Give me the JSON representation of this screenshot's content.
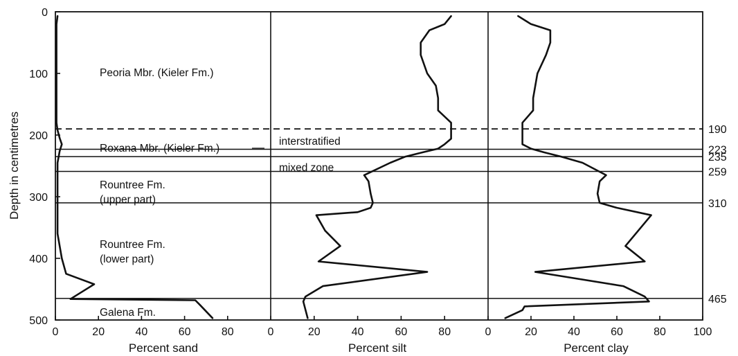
{
  "chart_data": {
    "type": "line",
    "ylabel": "Depth in centimetres",
    "ylim": [
      0,
      500
    ],
    "yticks": [
      "0",
      "100",
      "200",
      "300",
      "400",
      "500"
    ],
    "y_inverted": true,
    "panels": [
      {
        "xlabel": "Percent sand",
        "xlim": [
          0,
          100
        ],
        "xticks": [
          "0",
          "20",
          "40",
          "60",
          "80"
        ],
        "series": {
          "x": [
            1,
            0.5,
            0.5,
            0.5,
            0.5,
            0.5,
            1,
            2,
            3,
            2,
            1,
            1,
            1,
            3,
            5,
            18,
            7,
            65,
            67,
            73
          ],
          "y": [
            7,
            20,
            50,
            100,
            150,
            180,
            192,
            205,
            215,
            226,
            245,
            300,
            360,
            400,
            425,
            442,
            466,
            468,
            475,
            497
          ]
        }
      },
      {
        "xlabel": "Percent silt",
        "xlim": [
          0,
          100
        ],
        "xticks": [
          "0",
          "20",
          "40",
          "60",
          "80"
        ],
        "series": {
          "x": [
            83,
            80,
            73,
            69,
            69,
            72,
            76,
            77,
            77,
            83,
            83,
            80,
            77,
            70,
            62,
            55,
            43,
            45,
            46,
            47,
            46,
            40,
            21,
            25,
            32,
            22,
            72,
            24,
            16,
            15,
            17
          ],
          "y": [
            7,
            20,
            30,
            50,
            70,
            100,
            120,
            140,
            160,
            180,
            206,
            215,
            222,
            228,
            235,
            245,
            265,
            275,
            295,
            310,
            318,
            325,
            330,
            355,
            380,
            405,
            422,
            445,
            462,
            470,
            497
          ]
        }
      },
      {
        "xlabel": "Percent clay",
        "xlim": [
          0,
          100
        ],
        "xticks": [
          "0",
          "20",
          "40",
          "60",
          "80",
          "100"
        ],
        "series": {
          "x": [
            14,
            20,
            29,
            29,
            27,
            23,
            22,
            21,
            21,
            16,
            16,
            16,
            20,
            26,
            34,
            44,
            55,
            52,
            51,
            52,
            60,
            76,
            64,
            73,
            22,
            63,
            73,
            75,
            17,
            16,
            8
          ],
          "y": [
            7,
            20,
            30,
            50,
            70,
            100,
            120,
            140,
            160,
            180,
            206,
            215,
            222,
            228,
            235,
            245,
            265,
            275,
            295,
            310,
            318,
            330,
            380,
            405,
            422,
            445,
            462,
            470,
            478,
            484,
            497
          ]
        }
      }
    ],
    "boundaries": [
      {
        "depth": 190,
        "label": "190",
        "style": "dashed"
      },
      {
        "depth": 223,
        "label": "223",
        "style": "solid"
      },
      {
        "depth": 235,
        "label": "235",
        "style": "solid"
      },
      {
        "depth": 259,
        "label": "259",
        "style": "solid"
      },
      {
        "depth": 310,
        "label": "310",
        "style": "solid"
      },
      {
        "depth": 465,
        "label": "465",
        "style": "solid"
      }
    ],
    "annotations": {
      "peoria": "Peoria Mbr. (Kieler Fm.)",
      "roxana": "Roxana Mbr. (Kieler Fm.)",
      "interstratified": "interstratified",
      "mixed_zone": "mixed zone",
      "rountree_upper_1": "Rountree Fm.",
      "rountree_upper_2": "(upper part)",
      "rountree_lower_1": "Rountree Fm.",
      "rountree_lower_2": "(lower part)",
      "galena": "Galena Fm."
    }
  }
}
